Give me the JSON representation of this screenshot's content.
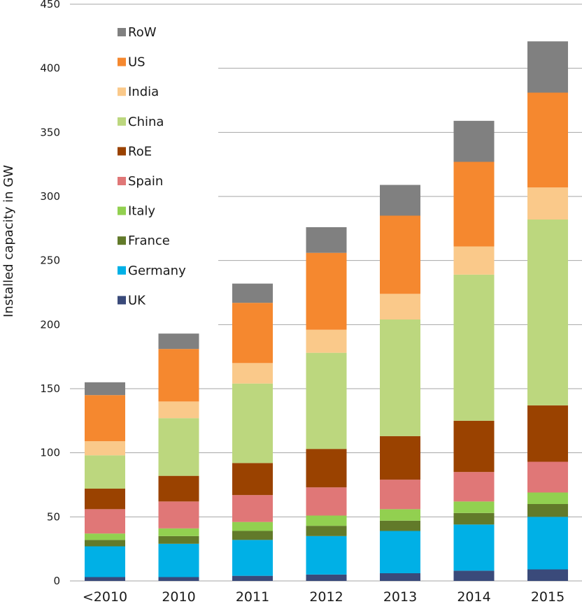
{
  "chart_data": {
    "type": "bar",
    "stacked": true,
    "title": "",
    "xlabel": "",
    "ylabel": "Installed capacity in GW",
    "ylim": [
      0,
      450
    ],
    "yticks": [
      0,
      50,
      100,
      150,
      200,
      250,
      300,
      350,
      400,
      450
    ],
    "grid": "horizontal",
    "legend_position": "top-left",
    "categories": [
      "<2010",
      "2010",
      "2011",
      "2012",
      "2013",
      "2014",
      "2015"
    ],
    "series": [
      {
        "name": "UK",
        "color": "#3a4a7a",
        "values": [
          3,
          3,
          4,
          5,
          6,
          8,
          9
        ]
      },
      {
        "name": "Germany",
        "color": "#00b0e6",
        "values": [
          24,
          26,
          28,
          30,
          33,
          36,
          41
        ]
      },
      {
        "name": "France",
        "color": "#627a2a",
        "values": [
          5,
          6,
          7,
          8,
          8,
          9,
          10
        ]
      },
      {
        "name": "Italy",
        "color": "#92d050",
        "values": [
          5,
          6,
          7,
          8,
          9,
          9,
          9
        ]
      },
      {
        "name": "Spain",
        "color": "#e07777",
        "values": [
          19,
          21,
          21,
          22,
          23,
          23,
          24
        ]
      },
      {
        "name": "RoE",
        "color": "#9a4200",
        "values": [
          16,
          20,
          25,
          30,
          34,
          40,
          44
        ]
      },
      {
        "name": "China",
        "color": "#bcd77e",
        "values": [
          26,
          45,
          62,
          75,
          91,
          114,
          145
        ]
      },
      {
        "name": "India",
        "color": "#fac98a",
        "values": [
          11,
          13,
          16,
          18,
          20,
          22,
          25
        ]
      },
      {
        "name": "US",
        "color": "#f5882f",
        "values": [
          36,
          41,
          47,
          60,
          61,
          66,
          74
        ]
      },
      {
        "name": "RoW",
        "color": "#808080",
        "values": [
          10,
          12,
          15,
          20,
          24,
          32,
          40
        ]
      }
    ]
  }
}
